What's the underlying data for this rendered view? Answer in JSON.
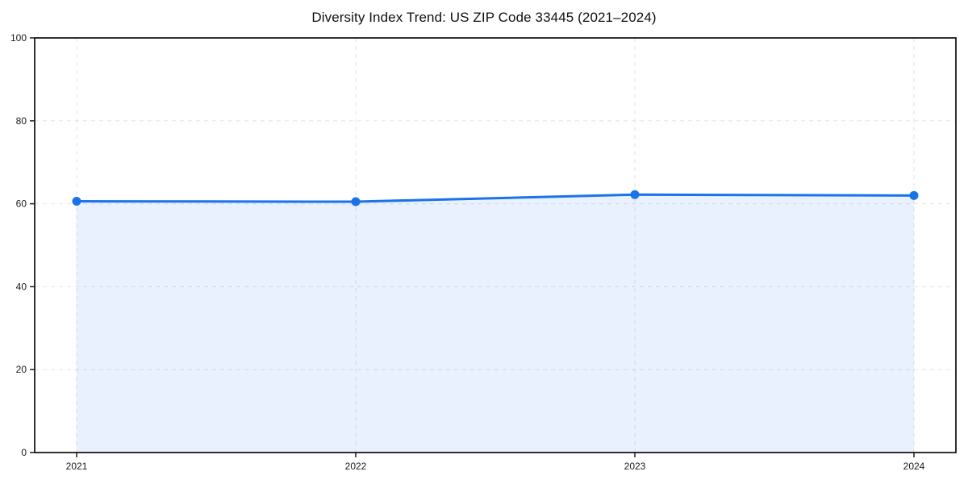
{
  "page": {
    "background_color": "#ffffff"
  },
  "chart_data": {
    "type": "area",
    "title": "Diversity Index Trend: US ZIP Code 33445 (2021–2024)",
    "x": [
      2021,
      2022,
      2023,
      2024
    ],
    "categories": [
      "2021",
      "2022",
      "2023",
      "2024"
    ],
    "series": [
      {
        "name": "Diversity Index",
        "values": [
          60.6,
          60.5,
          62.2,
          62.0
        ]
      }
    ],
    "xlabel": "",
    "ylabel": "",
    "ylim": [
      0,
      100
    ],
    "yticks": [
      0,
      20,
      40,
      60,
      80,
      100
    ],
    "grid": "dashed, both axes",
    "legend_position": "none",
    "line_color": "#1a73e8",
    "marker_color": "#1a73e8",
    "fill_color": "rgba(26,115,232,0.10)",
    "gridline_color": "#e2e2e2",
    "spine_color": "#1a1a1a",
    "marker_shape": "circle"
  }
}
